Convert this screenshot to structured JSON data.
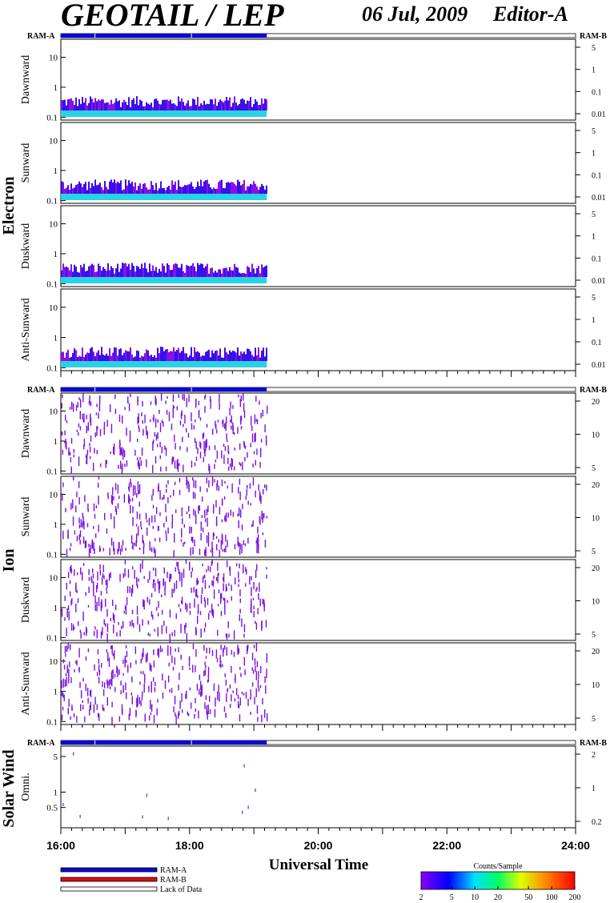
{
  "header": {
    "title": "GEOTAIL / LEP",
    "date": "06 Jul, 2009",
    "editor": "Editor-A"
  },
  "colors": {
    "ram_a": "#0a0ad8",
    "ram_b": "#d81010",
    "frame": "#000000",
    "electron_bg": "#2ad2e6",
    "ion_mark": "#7a10e0"
  },
  "chart_data": {
    "type": "heatmap",
    "xlabel": "Universal Time",
    "x_ticks": [
      "16:00",
      "18:00",
      "20:00",
      "22:00",
      "24:00"
    ],
    "x_range_hours": [
      16,
      24
    ],
    "data_end_hour": 19.2,
    "status_bar_labels": {
      "left": "RAM-A",
      "right": "RAM-B"
    },
    "groups": [
      {
        "name": "Electron",
        "panels": [
          {
            "name": "Dawnward",
            "ytick_labels": [
              "10",
              "1",
              "0.1"
            ],
            "y_range": [
              0.08,
              40
            ],
            "right_ticks": [
              "5",
              "1",
              "0.1",
              "0.01"
            ]
          },
          {
            "name": "Sunward",
            "ytick_labels": [
              "10",
              "1",
              "0.1"
            ],
            "y_range": [
              0.08,
              40
            ],
            "right_ticks": [
              "5",
              "1",
              "0.1",
              "0.01"
            ]
          },
          {
            "name": "Duskward",
            "ytick_labels": [
              "10",
              "1",
              "0.1"
            ],
            "y_range": [
              0.08,
              40
            ],
            "right_ticks": [
              "5",
              "1",
              "0.1",
              "0.01"
            ]
          },
          {
            "name": "Anti-Sunward",
            "ytick_labels": [
              "10",
              "1",
              "0.1"
            ],
            "y_range": [
              0.08,
              40
            ],
            "right_ticks": [
              "5",
              "1",
              "0.1",
              "0.01"
            ]
          }
        ]
      },
      {
        "name": "Ion",
        "panels": [
          {
            "name": "Dawnward",
            "ytick_labels": [
              "10",
              "1",
              "0.1"
            ],
            "y_range": [
              0.08,
              40
            ],
            "right_ticks": [
              "20",
              "10",
              "5"
            ]
          },
          {
            "name": "Sunward",
            "ytick_labels": [
              "10",
              "1",
              "0.1"
            ],
            "y_range": [
              0.08,
              40
            ],
            "right_ticks": [
              "20",
              "10",
              "5"
            ]
          },
          {
            "name": "Duskward",
            "ytick_labels": [
              "10",
              "1",
              "0.1"
            ],
            "y_range": [
              0.08,
              40
            ],
            "right_ticks": [
              "20",
              "10",
              "5"
            ]
          },
          {
            "name": "Anti-Sunward",
            "ytick_labels": [
              "10",
              "1",
              "0.1"
            ],
            "y_range": [
              0.08,
              40
            ],
            "right_ticks": [
              "20",
              "10",
              "5"
            ]
          }
        ]
      },
      {
        "name": "Solar Wind",
        "panels": [
          {
            "name": "Omni.",
            "ytick_labels": [
              "5",
              "1",
              "0.5"
            ],
            "y_range": [
              0.2,
              8
            ],
            "right_ticks": [
              "2",
              "1",
              "0.2"
            ]
          }
        ]
      }
    ],
    "legend": {
      "items": [
        "RAM-A",
        "RAM-B",
        "Lack of Data"
      ]
    },
    "colorbar": {
      "title": "Counts/Sample",
      "ticks": [
        "2",
        "5",
        "10",
        "20",
        "50",
        "100",
        "200"
      ],
      "scale": "log",
      "range": [
        2,
        200
      ]
    }
  }
}
